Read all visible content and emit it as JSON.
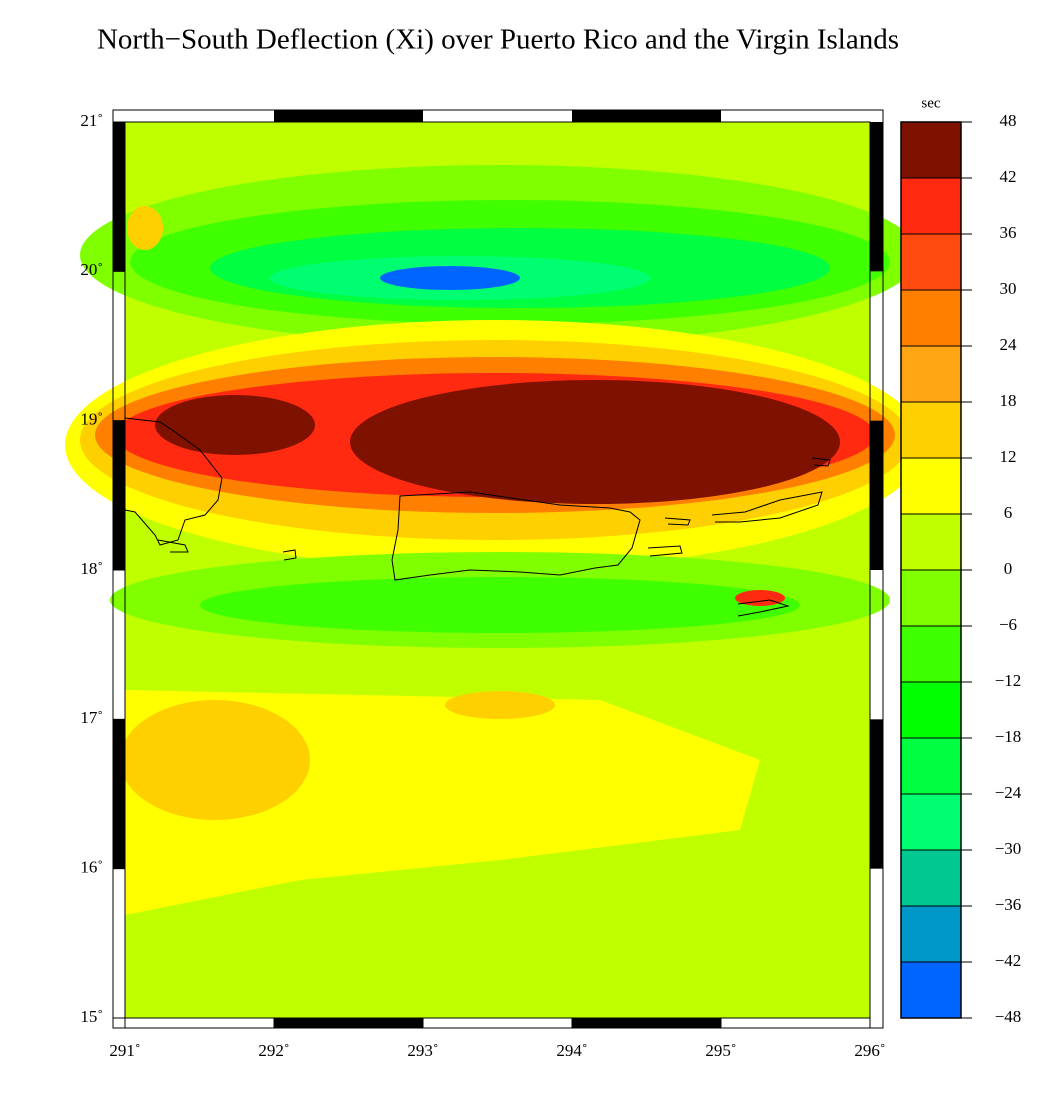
{
  "title": "North−South Deflection (Xi) over Puerto Rico and the Virgin Islands",
  "map": {
    "xlim": [
      291,
      296
    ],
    "ylim": [
      15,
      21
    ],
    "xticks": [
      {
        "value": 291,
        "label": "291˚"
      },
      {
        "value": 292,
        "label": "292˚"
      },
      {
        "value": 293,
        "label": "293˚"
      },
      {
        "value": 294,
        "label": "294˚"
      },
      {
        "value": 295,
        "label": "295˚"
      },
      {
        "value": 296,
        "label": "296˚"
      }
    ],
    "yticks": [
      {
        "value": 15,
        "label": "15˚"
      },
      {
        "value": 16,
        "label": "16˚"
      },
      {
        "value": 17,
        "label": "17˚"
      },
      {
        "value": 18,
        "label": "18˚"
      },
      {
        "value": 19,
        "label": "19˚"
      },
      {
        "value": 20,
        "label": "20˚"
      },
      {
        "value": 21,
        "label": "21˚"
      }
    ]
  },
  "colorbar": {
    "unit": "sec",
    "lim": [
      -48,
      48
    ],
    "levels": [
      {
        "value": -48,
        "label": "−48"
      },
      {
        "value": -42,
        "label": "−42"
      },
      {
        "value": -36,
        "label": "−36"
      },
      {
        "value": -30,
        "label": "−30"
      },
      {
        "value": -24,
        "label": "−24"
      },
      {
        "value": -18,
        "label": "−18"
      },
      {
        "value": -12,
        "label": "−12"
      },
      {
        "value": -6,
        "label": "−6"
      },
      0,
      6,
      12,
      18,
      24,
      30,
      36,
      42,
      48
    ],
    "colors": [
      "#0064ff",
      "#0098c8",
      "#00c890",
      "#00ff70",
      "#00ff40",
      "#00ff00",
      "#40ff00",
      "#80ff00",
      "#c0ff00",
      "#ffff00",
      "#ffd000",
      "#ffa514",
      "#ff7f00",
      "#ff4a10",
      "#ff2a10",
      "#7f1100"
    ]
  }
}
